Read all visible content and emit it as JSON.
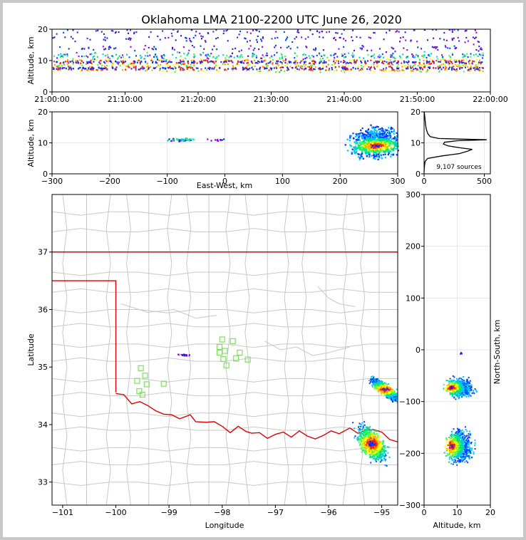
{
  "title": "Oklahoma LMA 2100-2200 UTC June 26, 2020",
  "colors": {
    "state_border": "#e00000",
    "county_border": "#c8c8c8",
    "station": "#7fe060",
    "profile_line": "#000000"
  },
  "chart_data": [
    {
      "id": "time_height",
      "type": "scatter",
      "ylabel": "Altitude, km",
      "ylim": [
        0,
        20
      ],
      "y_ticks": [
        "0",
        "10",
        "20"
      ],
      "x_ticks": [
        "21:00:00",
        "21:10:00",
        "21:20:00",
        "21:30:00",
        "21:40:00",
        "21:50:00",
        "22:00:00"
      ],
      "x_range": [
        "21:00:00",
        "22:00:00"
      ],
      "grid": true,
      "density_rows": [
        {
          "altitude_km": 7.5,
          "intensity": "high"
        },
        {
          "altitude_km": 9.5,
          "intensity": "high"
        },
        {
          "altitude_km": 11.5,
          "intensity": "medium"
        },
        {
          "altitude_km": 14.0,
          "intensity": "low"
        },
        {
          "altitude_km": 17.0,
          "intensity": "low"
        },
        {
          "altitude_km": 19.5,
          "intensity": "low"
        }
      ]
    },
    {
      "id": "ew_height",
      "type": "scatter",
      "xlabel": "East-West, km",
      "ylabel": "Altitude, km",
      "xlim": [
        -300,
        300
      ],
      "ylim": [
        0,
        20
      ],
      "x_ticks": [
        "−300",
        "−200",
        "−100",
        "0",
        "100",
        "200",
        "300"
      ],
      "y_ticks": [
        "0",
        "10",
        "20"
      ],
      "grid": true,
      "clusters": [
        {
          "x_center_km": -75,
          "x_width_km": 40,
          "alt_center_km": 11,
          "alt_spread_km": 0.6,
          "intensity": "medium"
        },
        {
          "x_center_km": -15,
          "x_width_km": 30,
          "alt_center_km": 11,
          "alt_spread_km": 0.3,
          "intensity": "low"
        },
        {
          "x_center_km": 262,
          "x_width_km": 70,
          "alt_center_km": 10,
          "alt_spread_km": 4,
          "intensity": "high"
        }
      ]
    },
    {
      "id": "altitude_histogram",
      "type": "line",
      "xlim": [
        0,
        550
      ],
      "ylim": [
        0,
        20
      ],
      "x_ticks": [
        "0",
        "500"
      ],
      "y_ticks": [
        "0",
        "10",
        "20"
      ],
      "annotation": "9,107 sources",
      "profile": [
        {
          "alt": 0.5,
          "count": 0
        },
        {
          "alt": 2,
          "count": 2
        },
        {
          "alt": 4,
          "count": 8
        },
        {
          "alt": 5,
          "count": 30
        },
        {
          "alt": 5.8,
          "count": 150
        },
        {
          "alt": 6.5,
          "count": 290
        },
        {
          "alt": 7.3,
          "count": 360
        },
        {
          "alt": 7.9,
          "count": 400
        },
        {
          "alt": 8.4,
          "count": 300
        },
        {
          "alt": 9.0,
          "count": 200
        },
        {
          "alt": 9.6,
          "count": 160
        },
        {
          "alt": 10.2,
          "count": 170
        },
        {
          "alt": 10.7,
          "count": 280
        },
        {
          "alt": 11.0,
          "count": 520
        },
        {
          "alt": 11.4,
          "count": 120
        },
        {
          "alt": 12.0,
          "count": 50
        },
        {
          "alt": 13.0,
          "count": 30
        },
        {
          "alt": 14.5,
          "count": 18
        },
        {
          "alt": 16.0,
          "count": 12
        },
        {
          "alt": 17.5,
          "count": 8
        },
        {
          "alt": 19.0,
          "count": 4
        },
        {
          "alt": 20.0,
          "count": 2
        }
      ]
    },
    {
      "id": "plan_view",
      "type": "scatter",
      "xlabel": "Longitude",
      "ylabel": "Latitude",
      "xlim": [
        -101.2,
        -94.7
      ],
      "ylim": [
        32.6,
        38.0
      ],
      "x_ticks": [
        "−101",
        "−100",
        "−99",
        "−98",
        "−97",
        "−96",
        "−95"
      ],
      "y_ticks": [
        "33",
        "34",
        "35",
        "36",
        "37"
      ],
      "stations": [
        [
          -98.0,
          35.48
        ],
        [
          -98.05,
          35.35
        ],
        [
          -98.05,
          35.25
        ],
        [
          -97.95,
          35.28
        ],
        [
          -97.8,
          35.45
        ],
        [
          -97.67,
          35.25
        ],
        [
          -97.52,
          35.13
        ],
        [
          -97.74,
          35.15
        ],
        [
          -97.92,
          35.03
        ],
        [
          -97.98,
          35.14
        ],
        [
          -99.53,
          34.98
        ],
        [
          -99.45,
          34.85
        ],
        [
          -99.6,
          34.76
        ],
        [
          -99.42,
          34.7
        ],
        [
          -99.56,
          34.58
        ],
        [
          -99.5,
          34.52
        ],
        [
          -99.1,
          34.71
        ]
      ],
      "clusters": [
        {
          "lon": -98.75,
          "lat": 35.22,
          "spread_lon": 0.18,
          "spread_lat": 0.02,
          "intensity": "low"
        },
        {
          "lon": -94.95,
          "lat": 34.62,
          "spread_lon": 0.35,
          "spread_lat": 0.14,
          "intensity": "high"
        },
        {
          "lon": -95.2,
          "lat": 33.68,
          "spread_lon": 0.35,
          "spread_lat": 0.32,
          "intensity": "high"
        }
      ]
    },
    {
      "id": "ns_height",
      "type": "scatter",
      "xlabel": "Altitude, km",
      "ylabel": "North-South, km",
      "xlim": [
        0,
        20
      ],
      "ylim": [
        -300,
        300
      ],
      "x_ticks": [
        "0",
        "10",
        "20"
      ],
      "y_ticks": [
        "300",
        "200",
        "100",
        "0",
        "−100",
        "−200",
        "−300"
      ],
      "grid": true,
      "clusters": [
        {
          "ns_center_km": -72,
          "ns_spread_km": 16,
          "alt_center_km": 10.5,
          "alt_spread_km": 4,
          "intensity": "high"
        },
        {
          "ns_center_km": -185,
          "ns_spread_km": 28,
          "alt_center_km": 10.5,
          "alt_spread_km": 4,
          "intensity": "high"
        },
        {
          "ns_center_km": -5,
          "ns_spread_km": 3,
          "alt_center_km": 11,
          "alt_spread_km": 0.5,
          "intensity": "low"
        }
      ]
    }
  ]
}
